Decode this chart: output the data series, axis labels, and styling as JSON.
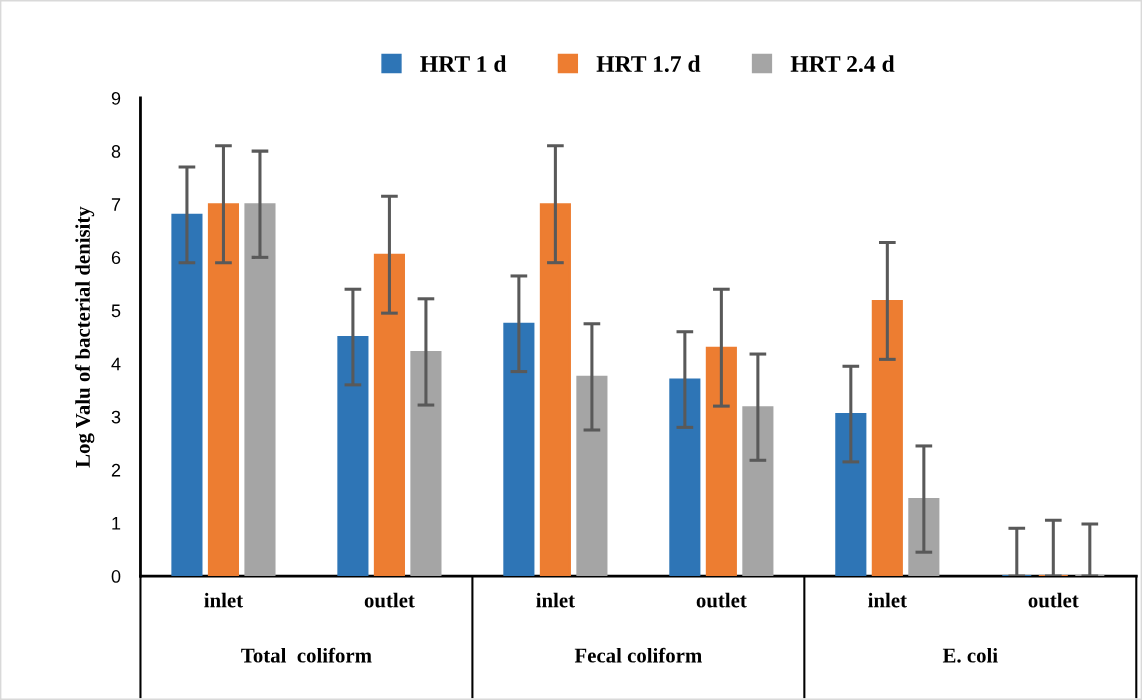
{
  "chart_data": {
    "type": "bar",
    "ylabel": "Log Valu of bacterial denisity",
    "categories": [
      "inlet",
      "outlet",
      "inlet",
      "outlet",
      "inlet",
      "outlet"
    ],
    "annotations": [
      "Total  coliform",
      "Fecal coliform",
      "E. coli"
    ],
    "series": [
      {
        "name": "HRT 1 d",
        "color": "#2e75b6",
        "values": [
          6.8,
          4.5,
          4.75,
          3.7,
          3.05,
          0
        ],
        "errors": [
          0.9,
          0.9,
          0.9,
          0.9,
          0.9,
          [
            0,
            0.9
          ]
        ]
      },
      {
        "name": "HRT 1.7 d",
        "color": "#ed7d31",
        "values": [
          7.0,
          6.05,
          7.0,
          4.3,
          5.18,
          0
        ],
        "errors": [
          1.1,
          1.1,
          1.1,
          1.1,
          1.1,
          [
            0,
            1.05
          ]
        ]
      },
      {
        "name": "HRT 2.4 d",
        "color": "#a5a5a5",
        "values": [
          7.0,
          4.22,
          3.75,
          3.18,
          1.45,
          0
        ],
        "errors": [
          1.0,
          1.0,
          1.0,
          1.0,
          1.0,
          [
            0,
            0.98
          ]
        ]
      }
    ],
    "ylim": [
      0,
      9
    ],
    "yticks": [
      0,
      1,
      2,
      3,
      4,
      5,
      6,
      7,
      8,
      9
    ],
    "grid": false,
    "legend": "top"
  }
}
